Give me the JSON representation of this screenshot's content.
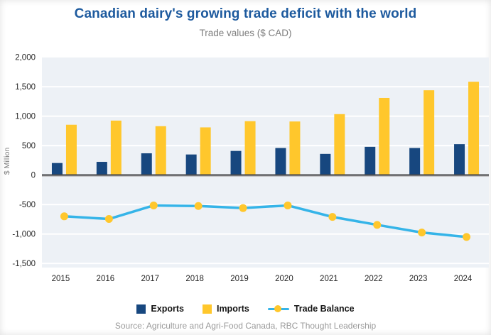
{
  "title": "Canadian dairy's growing trade deficit with the world",
  "subtitle": "Trade values ($ CAD)",
  "source": "Source: Agriculture and Agri-Food Canada, RBC Thought Leadership",
  "colors": {
    "title_blue": "#1d5a9e",
    "exports_navy": "#17477f",
    "imports_yellow": "#ffc72c",
    "balance_line_cyan": "#35b4e8",
    "balance_marker_yellow": "#ffc72c",
    "plot_background": "#edf1f6",
    "gridline_white": "#ffffff",
    "zero_axis_dark": "#4a4a4d"
  },
  "chart_data": {
    "type": "bar",
    "subtype": "grouped bars with line overlay",
    "title": "Canadian dairy's growing trade deficit with the world",
    "subtitle": "Trade values ($ CAD)",
    "xlabel": "",
    "ylabel": "$ Million",
    "categories": [
      "2015",
      "2016",
      "2017",
      "2018",
      "2019",
      "2020",
      "2021",
      "2022",
      "2023",
      "2024"
    ],
    "series": [
      {
        "name": "Exports",
        "type": "bar",
        "values": [
          205,
          225,
          370,
          350,
          410,
          460,
          360,
          480,
          460,
          525
        ]
      },
      {
        "name": "Imports",
        "type": "bar",
        "values": [
          855,
          925,
          830,
          810,
          915,
          910,
          1035,
          1310,
          1440,
          1585
        ]
      },
      {
        "name": "Trade Balance",
        "type": "line",
        "values": [
          -700,
          -745,
          -515,
          -525,
          -560,
          -515,
          -710,
          -845,
          -975,
          -1050
        ]
      }
    ],
    "yticks": [
      2000,
      1500,
      1000,
      500,
      0,
      -500,
      -1000,
      -1500
    ],
    "ytick_labels": [
      "2,000",
      "1,500",
      "1,000",
      "500",
      "0",
      "-500",
      "-1,000",
      "-1,500"
    ],
    "ylim": [
      -1570,
      2000
    ],
    "grid": true,
    "legend_position": "bottom"
  }
}
